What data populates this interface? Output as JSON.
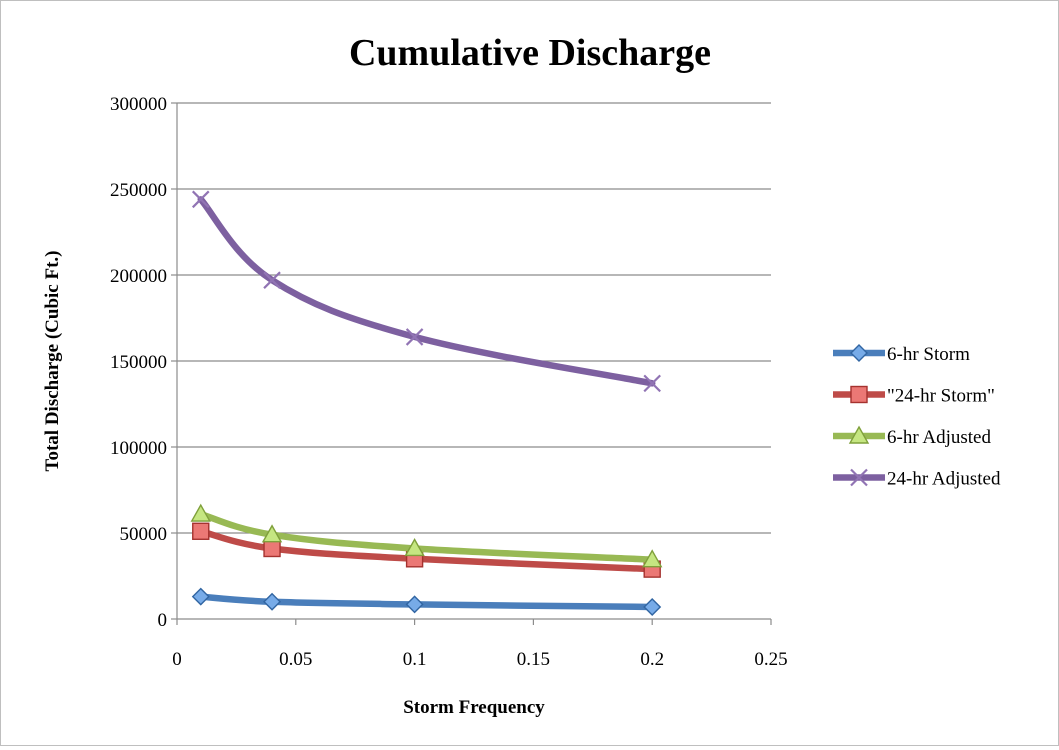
{
  "chart_data": {
    "type": "scatter",
    "title": "Cumulative Discharge",
    "xlabel": "Storm Frequency",
    "ylabel": "Total Discharge (Cubic Ft.)",
    "xlim": [
      0,
      0.25
    ],
    "ylim": [
      0,
      300000
    ],
    "x_ticks": [
      "0",
      "0.05",
      "0.1",
      "0.15",
      "0.2",
      "0.25"
    ],
    "y_ticks": [
      "0",
      "50000",
      "100000",
      "150000",
      "200000",
      "250000",
      "300000"
    ],
    "grid": "horizontal",
    "legend_position": "right",
    "smooth_lines": true,
    "series": [
      {
        "name": "6-hr Storm",
        "color": "#4a7ebb",
        "marker": "diamond",
        "x": [
          0.01,
          0.04,
          0.1,
          0.2
        ],
        "y": [
          13000,
          10000,
          8500,
          7000
        ]
      },
      {
        "name": "\"24-hr Storm\"",
        "color": "#be4b48",
        "marker": "square",
        "x": [
          0.01,
          0.04,
          0.1,
          0.2
        ],
        "y": [
          51000,
          41000,
          35000,
          29000
        ]
      },
      {
        "name": "6-hr Adjusted",
        "color": "#98b954",
        "marker": "triangle",
        "x": [
          0.01,
          0.04,
          0.1,
          0.2
        ],
        "y": [
          61000,
          49000,
          41000,
          34500
        ]
      },
      {
        "name": "24-hr Adjusted",
        "color": "#7d60a0",
        "marker": "x",
        "x": [
          0.01,
          0.04,
          0.1,
          0.2
        ],
        "y": [
          244000,
          197000,
          164000,
          137000
        ]
      }
    ]
  }
}
